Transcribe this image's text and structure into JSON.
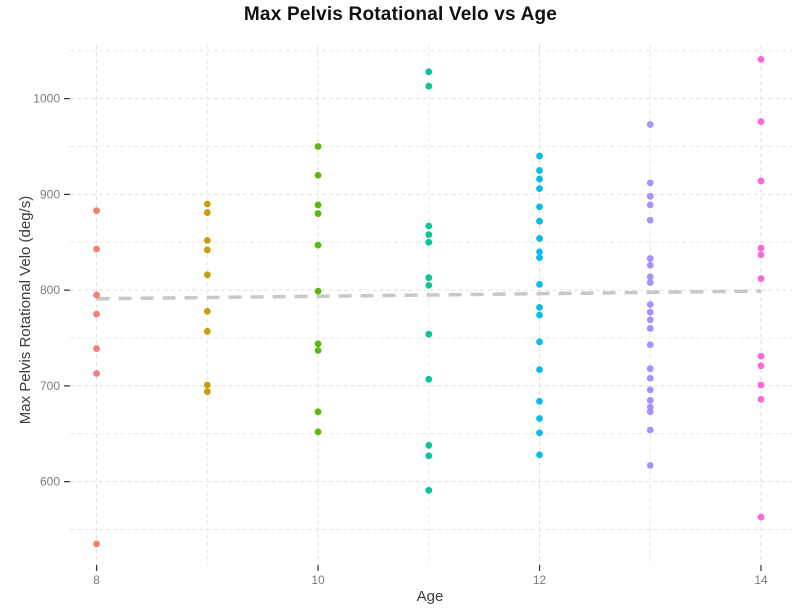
{
  "page": {
    "background": "#ffffff"
  },
  "chart_data": {
    "type": "scatter",
    "title": "Max Pelvis Rotational Velo vs Age",
    "xlabel": "Age",
    "ylabel": "Max Pelvis Rotational Velo (deg/s)",
    "xlim": [
      7.76,
      14.28
    ],
    "ylim": [
      513,
      1056
    ],
    "grid": "dashed, major and minor, light gray",
    "legend_position": "none",
    "x_tick_labels": [
      "8",
      "10",
      "12",
      "14"
    ],
    "x_ticks_major": [
      8,
      10,
      12,
      14
    ],
    "x_gridlines": [
      8,
      9,
      10,
      11,
      12,
      13,
      14
    ],
    "y_tick_labels": [
      "1000",
      "900",
      "800",
      "700",
      "600"
    ],
    "y_ticks_major": [
      1000,
      900,
      800,
      700,
      600
    ],
    "y_gridlines_minor": [
      1050,
      950,
      850,
      750,
      650,
      550
    ],
    "series": [
      {
        "name": "age-8",
        "x": 8,
        "color": "#F8766D",
        "values": [
          883,
          843,
          795,
          775,
          739,
          713,
          535
        ]
      },
      {
        "name": "age-9",
        "x": 9,
        "color": "#C49A00",
        "values": [
          890,
          881,
          852,
          842,
          816,
          778,
          757,
          701,
          694
        ]
      },
      {
        "name": "age-10",
        "x": 10,
        "color": "#53B400",
        "values": [
          950,
          920,
          889,
          880,
          847,
          799,
          744,
          737,
          673,
          652
        ]
      },
      {
        "name": "age-11",
        "x": 11,
        "color": "#00C094",
        "values": [
          1028,
          1013,
          867,
          858,
          850,
          813,
          805,
          754,
          707,
          638,
          627,
          591
        ]
      },
      {
        "name": "age-12",
        "x": 12,
        "color": "#00B6EB",
        "values": [
          940,
          925,
          916,
          906,
          887,
          872,
          854,
          840,
          834,
          806,
          782,
          774,
          746,
          717,
          684,
          666,
          651,
          628
        ]
      },
      {
        "name": "age-13",
        "x": 13,
        "color": "#A58AFF",
        "values": [
          973,
          912,
          898,
          889,
          873,
          833,
          826,
          814,
          808,
          785,
          777,
          769,
          760,
          743,
          718,
          708,
          696,
          685,
          678,
          673,
          654,
          617
        ]
      },
      {
        "name": "age-14",
        "x": 14,
        "color": "#FB61D7",
        "values": [
          1041,
          976,
          914,
          844,
          837,
          812,
          731,
          721,
          701,
          686,
          563
        ]
      }
    ],
    "trend_line": {
      "style": "dashed",
      "color": "#c8c8c8",
      "points": [
        [
          8,
          791
        ],
        [
          14,
          799
        ]
      ]
    },
    "style_colors": {
      "grid_major": "#dedede",
      "grid_minor": "#e8e8e8",
      "tick_mark": "#333333",
      "tick_label": "#7c7c7c",
      "axis_title": "#3c3c3c",
      "title": "#111111",
      "background": "#ffffff"
    }
  }
}
